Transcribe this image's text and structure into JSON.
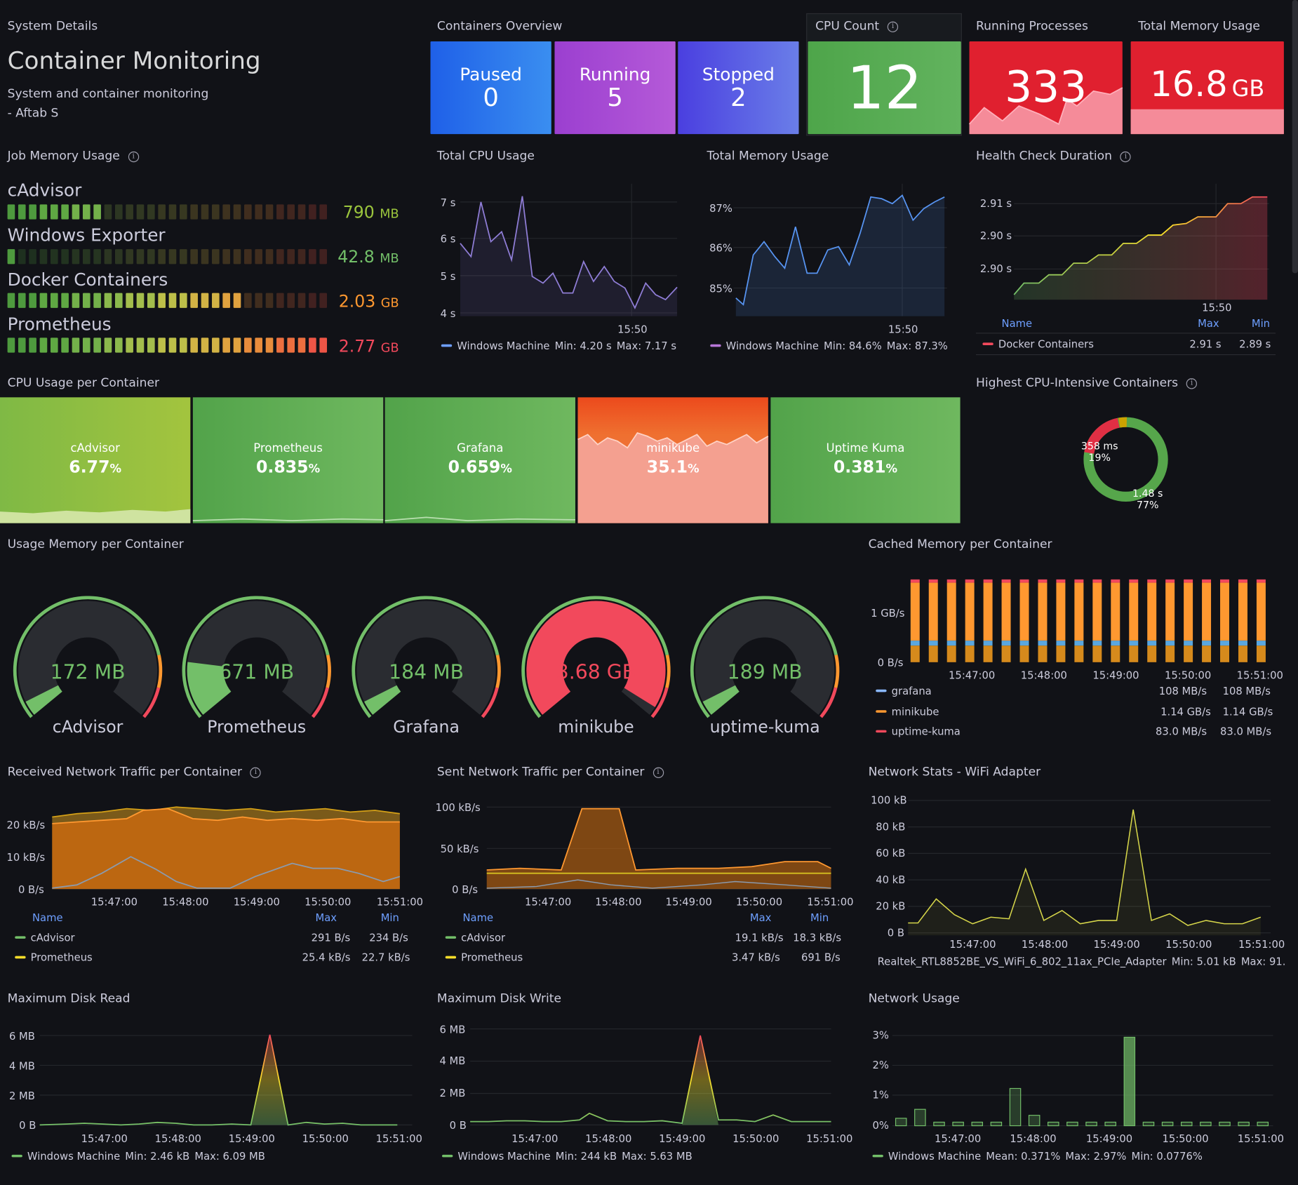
{
  "system": {
    "section": "System Details",
    "title": "Container Monitoring",
    "desc1": "System and container monitoring",
    "desc2": "- Aftab S"
  },
  "containers": {
    "section": "Containers Overview",
    "paused_label": "Paused",
    "paused": "0",
    "running_label": "Running",
    "running": "5",
    "stopped_label": "Stopped",
    "stopped": "2"
  },
  "cpu_count": {
    "title": "CPU Count",
    "value": "12",
    "color": "#4ea54a"
  },
  "running_processes": {
    "title": "Running Processes",
    "value": "333",
    "color": "#e02f44"
  },
  "total_memory_stat": {
    "title": "Total Memory Usage",
    "value": "16.8",
    "unit": "GB"
  },
  "job_memory": {
    "title": "Job Memory Usage",
    "items": [
      {
        "name": "cAdvisor",
        "value": "790",
        "unit": "MB",
        "color": "#9bc53d",
        "fraction": 0.29
      },
      {
        "name": "Windows Exporter",
        "value": "42.8",
        "unit": "MB",
        "color": "#73bf69",
        "fraction": 0.02
      },
      {
        "name": "Docker Containers",
        "value": "2.03",
        "unit": "GB",
        "color": "#ff9830",
        "fraction": 0.74
      },
      {
        "name": "Prometheus",
        "value": "2.77",
        "unit": "GB",
        "color": "#f2495c",
        "fraction": 1.0
      }
    ]
  },
  "total_cpu": {
    "title": "Total CPU Usage",
    "yticks": [
      "7 s",
      "6 s",
      "5 s",
      "4 s"
    ],
    "xtick": "15:50",
    "legend": "Windows Machine",
    "min": "Min: 4.20 s",
    "max": "Max: 7.17 s"
  },
  "total_mem": {
    "title": "Total Memory Usage",
    "yticks": [
      "87%",
      "86%",
      "85%"
    ],
    "xtick": "15:50",
    "legend": "Windows Machine",
    "min": "Min: 84.6%",
    "max": "Max: 87.3%"
  },
  "health": {
    "title": "Health Check Duration",
    "yticks": [
      "2.91 s",
      "2.90 s",
      "2.90 s"
    ],
    "xtick": "15:50",
    "col_name": "Name",
    "col_max": "Max",
    "col_min": "Min",
    "row_name": "Docker Containers",
    "row_max": "2.91 s",
    "row_min": "2.89 s"
  },
  "cpu_per_container": {
    "title": "CPU Usage per Container",
    "tiles": [
      {
        "name": "cAdvisor",
        "value": "6.77",
        "unit": "%"
      },
      {
        "name": "Prometheus",
        "value": "0.835",
        "unit": "%"
      },
      {
        "name": "Grafana",
        "value": "0.659",
        "unit": "%"
      },
      {
        "name": "minikube",
        "value": "35.1",
        "unit": "%"
      },
      {
        "name": "Uptime Kuma",
        "value": "0.381",
        "unit": "%"
      }
    ]
  },
  "highest_cpu": {
    "title": "Highest CPU-Intensive Containers",
    "a_val": "358 ms",
    "a_pct": "19%",
    "b_val": "1.48 s",
    "b_pct": "77%"
  },
  "usage_mem": {
    "title": "Usage Memory per Container",
    "gauges": [
      {
        "name": "cAdvisor",
        "value": "172 MB",
        "fraction": 0.05
      },
      {
        "name": "Prometheus",
        "value": "671 MB",
        "fraction": 0.18
      },
      {
        "name": "Grafana",
        "value": "184 MB",
        "fraction": 0.05
      },
      {
        "name": "minikube",
        "value": "3.68 GB",
        "fraction": 0.97
      },
      {
        "name": "uptime-kuma",
        "value": "189 MB",
        "fraction": 0.05
      }
    ]
  },
  "cached_mem": {
    "title": "Cached Memory per Container",
    "yticks": [
      "1 GB/s",
      "0 B/s"
    ],
    "xticks": [
      "15:47:00",
      "15:48:00",
      "15:49:00",
      "15:50:00",
      "15:51:00"
    ],
    "rows": [
      {
        "name": "grafana",
        "a": "108 MB/s",
        "b": "108 MB/s"
      },
      {
        "name": "minikube",
        "a": "1.14 GB/s",
        "b": "1.14 GB/s"
      },
      {
        "name": "uptime-kuma",
        "a": "83.0 MB/s",
        "b": "83.0 MB/s"
      }
    ]
  },
  "recv_net": {
    "title": "Received Network Traffic per Container",
    "yticks": [
      "20 kB/s",
      "10 kB/s",
      "0 B/s"
    ],
    "xticks": [
      "15:47:00",
      "15:48:00",
      "15:49:00",
      "15:50:00",
      "15:51:00"
    ],
    "col_name": "Name",
    "col_max": "Max",
    "col_min": "Min",
    "rows": [
      {
        "name": "cAdvisor",
        "max": "291 B/s",
        "min": "234 B/s"
      },
      {
        "name": "Prometheus",
        "max": "25.4 kB/s",
        "min": "22.7 kB/s"
      }
    ]
  },
  "sent_net": {
    "title": "Sent Network Traffic per Container",
    "yticks": [
      "100 kB/s",
      "50 kB/s",
      "0 B/s"
    ],
    "xticks": [
      "15:47:00",
      "15:48:00",
      "15:49:00",
      "15:50:00",
      "15:51:00"
    ],
    "col_name": "Name",
    "col_max": "Max",
    "col_min": "Min",
    "rows": [
      {
        "name": "cAdvisor",
        "max": "19.1 kB/s",
        "min": "18.3 kB/s"
      },
      {
        "name": "Prometheus",
        "max": "3.47 kB/s",
        "min": "691 B/s"
      }
    ]
  },
  "wifi": {
    "title": "Network Stats - WiFi Adapter",
    "yticks": [
      "100 kB",
      "80 kB",
      "60 kB",
      "40 kB",
      "20 kB",
      "0 B"
    ],
    "xticks": [
      "15:47:00",
      "15:48:00",
      "15:49:00",
      "15:50:00",
      "15:51:00"
    ],
    "legend": "Realtek_RTL8852BE_VS_WiFi_6_802_11ax_PCIe_Adapter",
    "min": "Min: 5.01 kB",
    "max": "Max: 91."
  },
  "disk_read": {
    "title": "Maximum Disk Read",
    "yticks": [
      "6 MB",
      "4 MB",
      "2 MB",
      "0 B"
    ],
    "xticks": [
      "15:47:00",
      "15:48:00",
      "15:49:00",
      "15:50:00",
      "15:51:00"
    ],
    "legend": "Windows Machine",
    "min": "Min: 2.46 kB",
    "max": "Max: 6.09 MB"
  },
  "disk_write": {
    "title": "Maximum Disk Write",
    "yticks": [
      "6 MB",
      "4 MB",
      "2 MB",
      "0 B"
    ],
    "xticks": [
      "15:47:00",
      "15:48:00",
      "15:49:00",
      "15:50:00",
      "15:51:00"
    ],
    "legend": "Windows Machine",
    "min": "Min: 244 kB",
    "max": "Max: 5.63 MB"
  },
  "net_usage": {
    "title": "Network Usage",
    "yticks": [
      "3%",
      "2%",
      "1%",
      "0%"
    ],
    "xticks": [
      "15:47:00",
      "15:48:00",
      "15:49:00",
      "15:50:00",
      "15:51:00"
    ],
    "legend": "Windows Machine",
    "mean": "Mean: 0.371%",
    "max": "Max: 2.97%",
    "min": "Min: 0.0776%"
  }
}
